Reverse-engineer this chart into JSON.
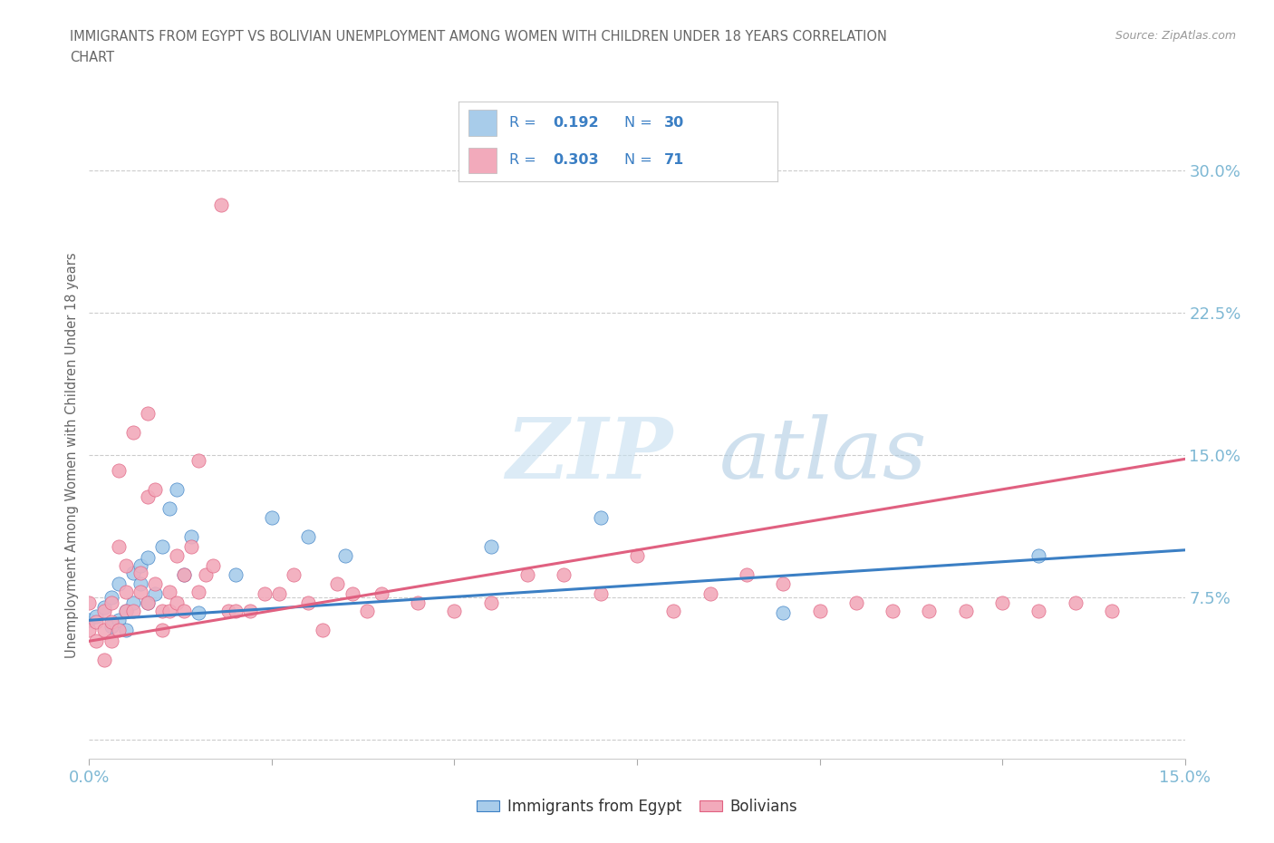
{
  "title_line1": "IMMIGRANTS FROM EGYPT VS BOLIVIAN UNEMPLOYMENT AMONG WOMEN WITH CHILDREN UNDER 18 YEARS CORRELATION",
  "title_line2": "CHART",
  "source": "Source: ZipAtlas.com",
  "ylabel": "Unemployment Among Women with Children Under 18 years",
  "xlim": [
    0.0,
    0.15
  ],
  "ylim": [
    -0.01,
    0.31
  ],
  "xticks": [
    0.0,
    0.025,
    0.05,
    0.075,
    0.1,
    0.125,
    0.15
  ],
  "yticks": [
    0.0,
    0.075,
    0.15,
    0.225,
    0.3
  ],
  "ytick_labels_right": [
    "",
    "7.5%",
    "15.0%",
    "22.5%",
    "30.0%"
  ],
  "watermark_zip": "ZIP",
  "watermark_atlas": "atlas",
  "series1_label": "Immigrants from Egypt",
  "series2_label": "Bolivians",
  "color1": "#A8CCEA",
  "color2": "#F2AABB",
  "line1_color": "#3B7FC4",
  "line2_color": "#E06080",
  "legend_text_color": "#3B7FC4",
  "grid_color": "#CCCCCC",
  "background_color": "#FFFFFF",
  "title_color": "#666666",
  "axis_label_color": "#666666",
  "tick_color": "#7EB8D4",
  "scatter1_x": [
    0.0,
    0.001,
    0.002,
    0.003,
    0.003,
    0.004,
    0.004,
    0.005,
    0.005,
    0.006,
    0.006,
    0.007,
    0.007,
    0.008,
    0.008,
    0.009,
    0.01,
    0.011,
    0.012,
    0.013,
    0.014,
    0.015,
    0.02,
    0.025,
    0.03,
    0.035,
    0.055,
    0.07,
    0.095,
    0.13
  ],
  "scatter1_y": [
    0.063,
    0.065,
    0.07,
    0.06,
    0.075,
    0.063,
    0.082,
    0.068,
    0.058,
    0.072,
    0.088,
    0.082,
    0.092,
    0.096,
    0.072,
    0.077,
    0.102,
    0.122,
    0.132,
    0.087,
    0.107,
    0.067,
    0.087,
    0.117,
    0.107,
    0.097,
    0.102,
    0.117,
    0.067,
    0.097
  ],
  "scatter2_x": [
    0.0,
    0.0,
    0.001,
    0.001,
    0.002,
    0.002,
    0.002,
    0.003,
    0.003,
    0.003,
    0.004,
    0.004,
    0.004,
    0.005,
    0.005,
    0.005,
    0.006,
    0.006,
    0.007,
    0.007,
    0.008,
    0.008,
    0.008,
    0.009,
    0.009,
    0.01,
    0.01,
    0.011,
    0.011,
    0.012,
    0.012,
    0.013,
    0.013,
    0.014,
    0.015,
    0.015,
    0.016,
    0.017,
    0.018,
    0.019,
    0.02,
    0.022,
    0.024,
    0.026,
    0.028,
    0.03,
    0.032,
    0.034,
    0.036,
    0.038,
    0.04,
    0.045,
    0.05,
    0.055,
    0.06,
    0.065,
    0.07,
    0.075,
    0.08,
    0.085,
    0.09,
    0.095,
    0.1,
    0.105,
    0.11,
    0.115,
    0.12,
    0.125,
    0.13,
    0.135,
    0.14
  ],
  "scatter2_y": [
    0.058,
    0.072,
    0.062,
    0.052,
    0.068,
    0.058,
    0.042,
    0.072,
    0.062,
    0.052,
    0.142,
    0.102,
    0.058,
    0.078,
    0.068,
    0.092,
    0.162,
    0.068,
    0.088,
    0.078,
    0.172,
    0.128,
    0.072,
    0.082,
    0.132,
    0.058,
    0.068,
    0.078,
    0.068,
    0.097,
    0.072,
    0.087,
    0.068,
    0.102,
    0.147,
    0.078,
    0.087,
    0.092,
    0.282,
    0.068,
    0.068,
    0.068,
    0.077,
    0.077,
    0.087,
    0.072,
    0.058,
    0.082,
    0.077,
    0.068,
    0.077,
    0.072,
    0.068,
    0.072,
    0.087,
    0.087,
    0.077,
    0.097,
    0.068,
    0.077,
    0.087,
    0.082,
    0.068,
    0.072,
    0.068,
    0.068,
    0.068,
    0.072,
    0.068,
    0.072,
    0.068
  ],
  "regline1_x": [
    0.0,
    0.15
  ],
  "regline1_y": [
    0.063,
    0.1
  ],
  "regline2_x": [
    0.0,
    0.15
  ],
  "regline2_y": [
    0.052,
    0.148
  ]
}
